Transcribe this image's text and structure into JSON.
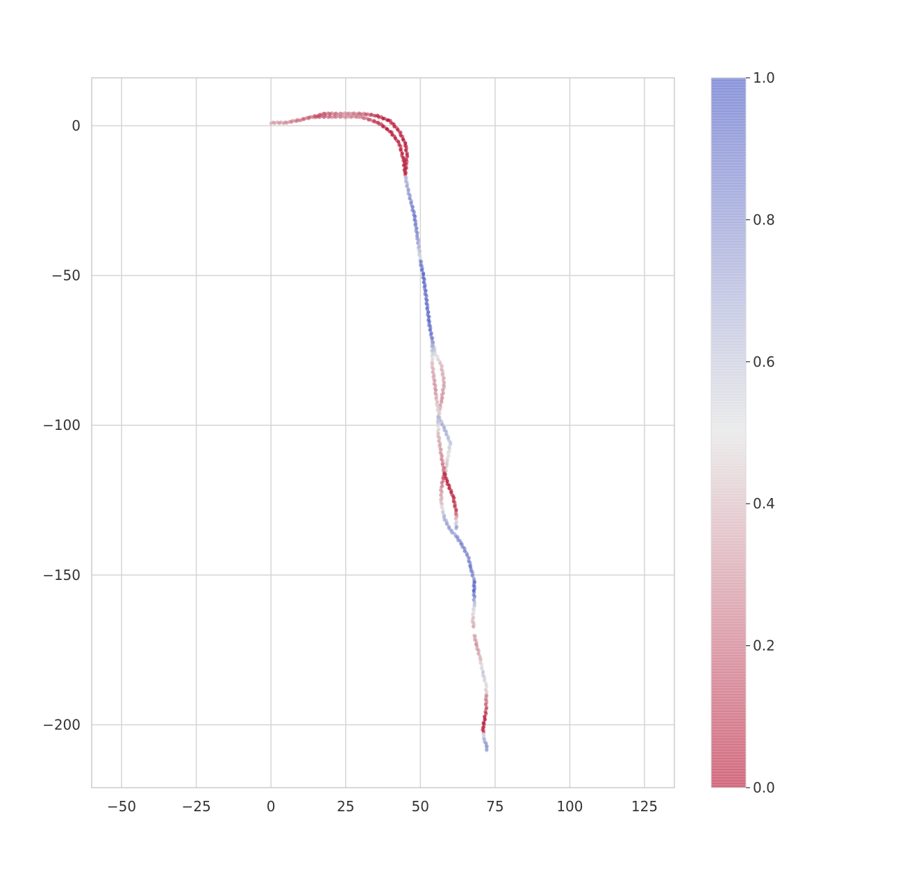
{
  "chart_data": {
    "type": "scatter",
    "title": "",
    "xlabel": "",
    "ylabel": "",
    "xlim": [
      -60,
      135
    ],
    "ylim": [
      -221,
      16
    ],
    "x_ticks": [
      -50,
      -25,
      0,
      25,
      50,
      75,
      100,
      125
    ],
    "y_ticks": [
      0,
      -50,
      -100,
      -150,
      -200
    ],
    "x_tick_labels": [
      "−50",
      "−25",
      "0",
      "25",
      "50",
      "75",
      "100",
      "125"
    ],
    "y_tick_labels": [
      "0",
      "−50",
      "−100",
      "−150",
      "−200"
    ],
    "grid": true,
    "colormap": "coolwarm_r",
    "colormap_colors": {
      "low": "#b40426",
      "mid": "#dddddd",
      "high": "#3b4cc0"
    },
    "colorbar": {
      "range": [
        0.0,
        1.0
      ],
      "ticks": [
        0.0,
        0.2,
        0.4,
        0.6,
        0.8,
        1.0
      ],
      "tick_labels": [
        "0.0",
        "0.2",
        "0.4",
        "0.6",
        "0.8",
        "1.0"
      ]
    },
    "path_segments": [
      {
        "x": [
          0,
          5,
          10,
          18,
          25,
          30,
          35
        ],
        "y": [
          1,
          1,
          2,
          4,
          4,
          4,
          3.5
        ],
        "c": [
          0.35,
          0.3,
          0.2,
          0.15,
          0.3,
          0.2,
          0.1
        ]
      },
      {
        "x": [
          15,
          25,
          30,
          36,
          40,
          43,
          44.5,
          45
        ],
        "y": [
          3,
          3,
          3,
          1,
          -2,
          -6,
          -12,
          -17
        ],
        "c": [
          0.15,
          0.3,
          0.25,
          0.05,
          0.0,
          0.05,
          0.0,
          0.05
        ]
      },
      {
        "x": [
          35,
          40,
          43,
          45,
          45.5,
          45
        ],
        "y": [
          3.5,
          1.5,
          -2,
          -6,
          -10,
          -16
        ],
        "c": [
          0.05,
          0.0,
          0.05,
          0.0,
          0.05,
          0.1
        ]
      },
      {
        "x": [
          45,
          46,
          48,
          49,
          50
        ],
        "y": [
          -17,
          -22,
          -30,
          -37,
          -45
        ],
        "c": [
          0.65,
          0.75,
          0.9,
          0.8,
          0.5
        ]
      },
      {
        "x": [
          50,
          51,
          52,
          53,
          54
        ],
        "y": [
          -45,
          -50,
          -58,
          -66,
          -72
        ],
        "c": [
          0.85,
          0.95,
          0.9,
          0.95,
          0.85
        ]
      },
      {
        "x": [
          54,
          55,
          57,
          58,
          57,
          56,
          56
        ],
        "y": [
          -72,
          -76,
          -80,
          -86,
          -92,
          -97,
          -100
        ],
        "c": [
          0.7,
          0.55,
          0.4,
          0.35,
          0.3,
          0.45,
          0.65
        ]
      },
      {
        "x": [
          54,
          54,
          55,
          56
        ],
        "y": [
          -72,
          -80,
          -88,
          -96
        ],
        "c": [
          0.75,
          0.4,
          0.3,
          0.5
        ]
      },
      {
        "x": [
          56,
          58,
          60,
          59,
          58
        ],
        "y": [
          -97,
          -101,
          -106,
          -112,
          -117
        ],
        "c": [
          0.6,
          0.7,
          0.6,
          0.45,
          0.35
        ]
      },
      {
        "x": [
          56,
          56,
          57,
          58
        ],
        "y": [
          -97,
          -103,
          -110,
          -116
        ],
        "c": [
          0.65,
          0.4,
          0.3,
          0.2
        ]
      },
      {
        "x": [
          58,
          59,
          61,
          62,
          62
        ],
        "y": [
          -116,
          -119,
          -124,
          -129,
          -135
        ],
        "c": [
          0.05,
          0.0,
          0.05,
          0.1,
          0.85
        ]
      },
      {
        "x": [
          58,
          57,
          57,
          58,
          60,
          62
        ],
        "y": [
          -116,
          -121,
          -126,
          -131,
          -135,
          -137
        ],
        "c": [
          0.1,
          0.3,
          0.4,
          0.7,
          0.75,
          0.7
        ]
      },
      {
        "x": [
          62,
          64,
          66,
          67,
          68
        ],
        "y": [
          -137,
          -140,
          -144,
          -148,
          -152
        ],
        "c": [
          0.8,
          0.85,
          0.8,
          0.9,
          0.75
        ]
      },
      {
        "x": [
          68,
          68,
          68,
          67.5,
          68
        ],
        "y": [
          -152,
          -156,
          -160,
          -165,
          -168
        ],
        "c": [
          0.95,
          0.95,
          0.6,
          0.4,
          0.35
        ]
      },
      {
        "x": [
          68,
          69,
          70,
          71,
          72,
          72
        ],
        "y": [
          -170,
          -174,
          -178,
          -183,
          -187,
          -190
        ],
        "c": [
          0.35,
          0.3,
          0.4,
          0.6,
          0.5,
          0.4
        ]
      },
      {
        "x": [
          72,
          72,
          71.5,
          71,
          71
        ],
        "y": [
          -190,
          -195,
          -198,
          -201,
          -203
        ],
        "c": [
          0.3,
          0.15,
          0.0,
          0.0,
          0.05
        ]
      },
      {
        "x": [
          71,
          71.5,
          72,
          72.5
        ],
        "y": [
          -203,
          -205,
          -207,
          -209
        ],
        "c": [
          0.5,
          0.7,
          0.8,
          0.75
        ]
      }
    ]
  }
}
